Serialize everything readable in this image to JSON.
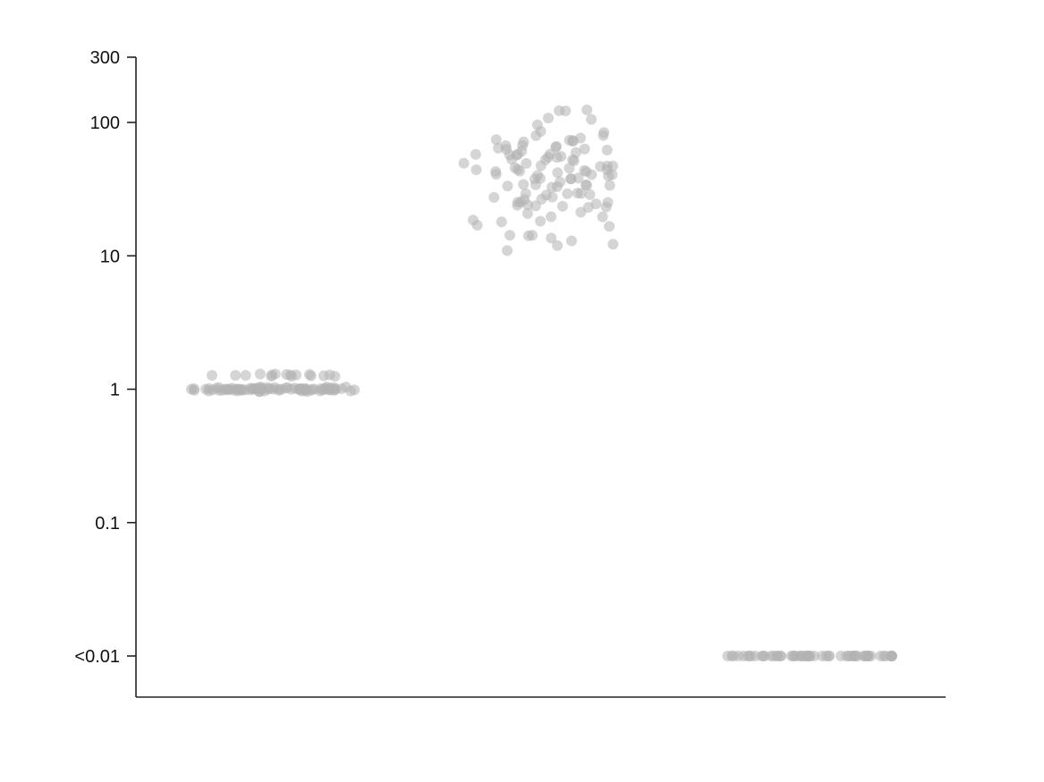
{
  "chart_data": {
    "type": "scatter",
    "title": "",
    "xlabel": "",
    "ylabel": "",
    "y_scale": "log",
    "ylim": [
      0.005,
      300
    ],
    "y_ticks": [
      {
        "value": 300,
        "label": "300"
      },
      {
        "value": 100,
        "label": "100"
      },
      {
        "value": 10,
        "label": "10"
      },
      {
        "value": 1,
        "label": "1"
      },
      {
        "value": 0.1,
        "label": "0.1"
      },
      {
        "value": 0.01,
        "label": "<0.01"
      }
    ],
    "x_ticks": [],
    "grid": false,
    "legend": "none",
    "point_color": "#b3b3b3",
    "groups": [
      {
        "label": "",
        "y_values": [
          1.0,
          0.98,
          1.02,
          0.99,
          1.01,
          0.97,
          1.03,
          1.0,
          0.96,
          1.04,
          1.0,
          0.99,
          1.01,
          0.98,
          1.02,
          1.0,
          1.0,
          0.97,
          1.03,
          0.99,
          1.01,
          1.0,
          0.98,
          1.02,
          1.0,
          0.99,
          1.01,
          1.0,
          0.96,
          1.04,
          1.0,
          0.98,
          1.02,
          0.99,
          1.01,
          1.0,
          0.97,
          1.03,
          1.0,
          0.99,
          1.01,
          0.98,
          1.02,
          1.0,
          1.0,
          0.99,
          1.01,
          0.97,
          1.03,
          1.0,
          0.98,
          1.02,
          1.0,
          0.99,
          1.01,
          1.0,
          0.96,
          1.04,
          1.0,
          0.98,
          1.02,
          0.99,
          1.01,
          1.0,
          1.0,
          0.97,
          1.03,
          1.0,
          0.99,
          1.01,
          0.98,
          1.02,
          1.0,
          0.99,
          1.01,
          1.0,
          0.97,
          1.03,
          1.0,
          1.0,
          1.25,
          1.28,
          1.27,
          1.3,
          1.26,
          1.29,
          1.27,
          1.28,
          1.25,
          1.3,
          1.26,
          1.28,
          1.27,
          1.29,
          1.25,
          1.28
        ]
      },
      {
        "label": "",
        "y_values": [
          125,
          125,
          118,
          112,
          102,
          95,
          88,
          85,
          82,
          80,
          78,
          76,
          75,
          73,
          72,
          70,
          70,
          68,
          67,
          66,
          65,
          64,
          63,
          62,
          61,
          60,
          60,
          59,
          58,
          57,
          56,
          55,
          55,
          54,
          53,
          52,
          52,
          51,
          50,
          50,
          49,
          48,
          48,
          47,
          46,
          46,
          45,
          45,
          44,
          44,
          43,
          43,
          42,
          42,
          41,
          41,
          40,
          40,
          39,
          39,
          38,
          38,
          37,
          36,
          36,
          35,
          35,
          34,
          34,
          33,
          33,
          32,
          32,
          31,
          31,
          30,
          30,
          29,
          29,
          28,
          28,
          27,
          27,
          26,
          26,
          25,
          25,
          24,
          24,
          23,
          23,
          22,
          22,
          21,
          20,
          20,
          19,
          18,
          18,
          17,
          17,
          16,
          15,
          15,
          14,
          13.5,
          13,
          12.5,
          12,
          11
        ],
        "y_range_observed": [
          11,
          125
        ]
      },
      {
        "label": "",
        "display_value_label": "<0.01",
        "y_values": [
          0.01,
          0.01,
          0.01,
          0.01,
          0.01,
          0.01,
          0.01,
          0.01,
          0.01,
          0.01,
          0.01,
          0.01,
          0.01,
          0.01,
          0.01,
          0.01,
          0.01,
          0.01,
          0.01,
          0.01,
          0.01,
          0.01,
          0.01,
          0.01,
          0.01,
          0.01,
          0.01,
          0.01,
          0.01,
          0.01,
          0.01,
          0.01,
          0.01,
          0.01,
          0.01,
          0.01,
          0.01,
          0.01,
          0.01,
          0.01,
          0.01,
          0.01,
          0.01,
          0.01,
          0.01,
          0.01,
          0.01,
          0.01,
          0.01,
          0.01,
          0.01,
          0.01,
          0.01,
          0.01,
          0.01,
          0.01,
          0.01,
          0.01,
          0.01,
          0.01
        ]
      }
    ]
  }
}
